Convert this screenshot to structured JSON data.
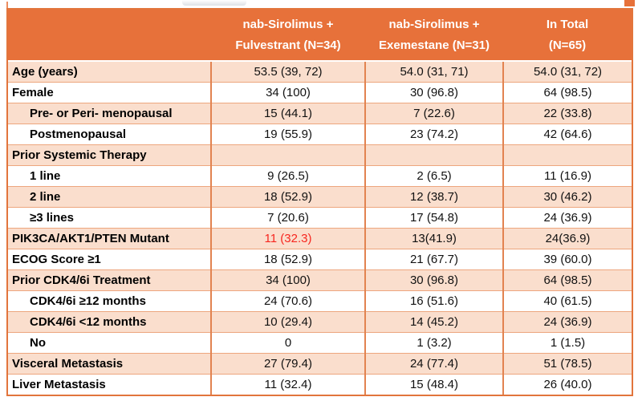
{
  "colors": {
    "header_bg": "#E7713A",
    "band_bg": "#FADECD",
    "plain_bg": "#FFFFFF",
    "outer_border": "#E2753C",
    "vertical_border": "#E28350",
    "horizontal_border": "#EDA67E",
    "header_text": "#FFFFFF",
    "body_text": "#111111",
    "red_highlight_text": "#F7261F"
  },
  "chart_data": {
    "type": "table",
    "title": "Baseline characteristics table (clinical trial arms)",
    "legend_position": "none",
    "header": [
      {
        "line1": "",
        "line2": ""
      },
      {
        "line1": "nab-Sirolimus +",
        "line2": "Fulvestrant (N=34)"
      },
      {
        "line1": "nab-Sirolimus +",
        "line2": "Exemestane (N=31)"
      },
      {
        "line1": "In Total",
        "line2": "(N=65)"
      }
    ],
    "rows": [
      {
        "label": "Age (years)",
        "indent": false,
        "shaded": true,
        "values": [
          "53.5 (39, 72)",
          "54.0 (31, 71)",
          "54.0 (31, 72)"
        ]
      },
      {
        "label": "Female",
        "indent": false,
        "shaded": false,
        "values": [
          "34 (100)",
          "30 (96.8)",
          "64 (98.5)"
        ]
      },
      {
        "label": "Pre- or Peri- menopausal",
        "indent": true,
        "shaded": true,
        "values": [
          "15 (44.1)",
          "7 (22.6)",
          "22 (33.8)"
        ]
      },
      {
        "label": "Postmenopausal",
        "indent": true,
        "shaded": false,
        "values": [
          "19 (55.9)",
          "23 (74.2)",
          "42 (64.6)"
        ]
      },
      {
        "label": "Prior Systemic Therapy",
        "indent": false,
        "shaded": true,
        "values": [
          "",
          "",
          ""
        ]
      },
      {
        "label": "1 line",
        "indent": true,
        "shaded": false,
        "values": [
          "9 (26.5)",
          "2 (6.5)",
          "11 (16.9)"
        ]
      },
      {
        "label": "2 line",
        "indent": true,
        "shaded": true,
        "values": [
          "18 (52.9)",
          "12 (38.7)",
          "30 (46.2)"
        ]
      },
      {
        "label": "≥3 lines",
        "indent": true,
        "shaded": false,
        "values": [
          "7 (20.6)",
          "17 (54.8)",
          "24 (36.9)"
        ]
      },
      {
        "label": "PIK3CA/AKT1/PTEN Mutant",
        "indent": false,
        "shaded": true,
        "values": [
          "11 (32.3)",
          "13(41.9)",
          "24(36.9)"
        ],
        "red_index": 0
      },
      {
        "label": "ECOG Score ≥1",
        "indent": false,
        "shaded": false,
        "values": [
          "18 (52.9)",
          "21 (67.7)",
          "39 (60.0)"
        ]
      },
      {
        "label": "Prior CDK4/6i Treatment",
        "indent": false,
        "shaded": true,
        "values": [
          "34 (100)",
          "30 (96.8)",
          "64 (98.5)"
        ]
      },
      {
        "label": "CDK4/6i ≥12 months",
        "indent": true,
        "shaded": false,
        "values": [
          "24 (70.6)",
          "16 (51.6)",
          "40 (61.5)"
        ]
      },
      {
        "label": "CDK4/6i <12 months",
        "indent": true,
        "shaded": true,
        "values": [
          "10 (29.4)",
          "14 (45.2)",
          "24 (36.9)"
        ]
      },
      {
        "label": "No",
        "indent": true,
        "shaded": false,
        "values": [
          "0",
          "1 (3.2)",
          "1 (1.5)"
        ]
      },
      {
        "label": "Visceral Metastasis",
        "indent": false,
        "shaded": true,
        "values": [
          "27 (79.4)",
          "24 (77.4)",
          "51 (78.5)"
        ]
      },
      {
        "label": "Liver Metastasis",
        "indent": false,
        "shaded": false,
        "values": [
          "11 (32.4)",
          "15 (48.4)",
          "26 (40.0)"
        ]
      }
    ]
  }
}
